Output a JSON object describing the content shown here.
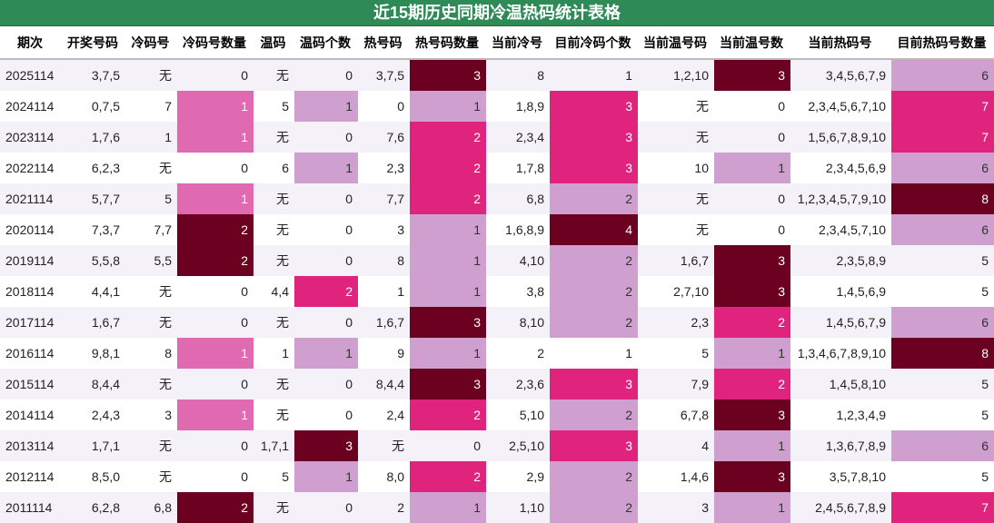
{
  "title": "近15期历史同期冷温热码统计表格",
  "colors": {
    "header_bg": "#2e8b57",
    "light": "#cf9fcf",
    "pink": "#e06ab2",
    "hot": "#e0247d",
    "dark": "#6b0020"
  },
  "columns": [
    "期次",
    "开奖号码",
    "冷码号",
    "冷码号数量",
    "温码",
    "温码个数",
    "热号码",
    "热号码数量",
    "当前冷号",
    "目前冷码个数",
    "当前温号码",
    "当前温号数",
    "当前热码号",
    "目前热码号数量"
  ],
  "rows": [
    [
      "2025114",
      "3,7,5",
      "无",
      "0",
      "无",
      "0",
      "3,7,5",
      "3",
      "8",
      "1",
      "1,2,10",
      "3",
      "3,4,5,6,7,9",
      "6"
    ],
    [
      "2024114",
      "0,7,5",
      "7",
      "1",
      "5",
      "1",
      "0",
      "1",
      "1,8,9",
      "3",
      "无",
      "0",
      "2,3,4,5,6,7,10",
      "7"
    ],
    [
      "2023114",
      "1,7,6",
      "1",
      "1",
      "无",
      "0",
      "7,6",
      "2",
      "2,3,4",
      "3",
      "无",
      "0",
      "1,5,6,7,8,9,10",
      "7"
    ],
    [
      "2022114",
      "6,2,3",
      "无",
      "0",
      "6",
      "1",
      "2,3",
      "2",
      "1,7,8",
      "3",
      "10",
      "1",
      "2,3,4,5,6,9",
      "6"
    ],
    [
      "2021114",
      "5,7,7",
      "5",
      "1",
      "无",
      "0",
      "7,7",
      "2",
      "6,8",
      "2",
      "无",
      "0",
      "1,2,3,4,5,7,9,10",
      "8"
    ],
    [
      "2020114",
      "7,3,7",
      "7,7",
      "2",
      "无",
      "0",
      "3",
      "1",
      "1,6,8,9",
      "4",
      "无",
      "0",
      "2,3,4,5,7,10",
      "6"
    ],
    [
      "2019114",
      "5,5,8",
      "5,5",
      "2",
      "无",
      "0",
      "8",
      "1",
      "4,10",
      "2",
      "1,6,7",
      "3",
      "2,3,5,8,9",
      "5"
    ],
    [
      "2018114",
      "4,4,1",
      "无",
      "0",
      "4,4",
      "2",
      "1",
      "1",
      "3,8",
      "2",
      "2,7,10",
      "3",
      "1,4,5,6,9",
      "5"
    ],
    [
      "2017114",
      "1,6,7",
      "无",
      "0",
      "无",
      "0",
      "1,6,7",
      "3",
      "8,10",
      "2",
      "2,3",
      "2",
      "1,4,5,6,7,9",
      "6"
    ],
    [
      "2016114",
      "9,8,1",
      "8",
      "1",
      "1",
      "1",
      "9",
      "1",
      "2",
      "1",
      "5",
      "1",
      "1,3,4,6,7,8,9,10",
      "8"
    ],
    [
      "2015114",
      "8,4,4",
      "无",
      "0",
      "无",
      "0",
      "8,4,4",
      "3",
      "2,3,6",
      "3",
      "7,9",
      "2",
      "1,4,5,8,10",
      "5"
    ],
    [
      "2014114",
      "2,4,3",
      "3",
      "1",
      "无",
      "0",
      "2,4",
      "2",
      "5,10",
      "2",
      "6,7,8",
      "3",
      "1,2,3,4,9",
      "5"
    ],
    [
      "2013114",
      "1,7,1",
      "无",
      "0",
      "1,7,1",
      "3",
      "无",
      "0",
      "2,5,10",
      "3",
      "4",
      "1",
      "1,3,6,7,8,9",
      "6"
    ],
    [
      "2012114",
      "8,5,0",
      "无",
      "0",
      "5",
      "1",
      "8,0",
      "2",
      "2,9",
      "2",
      "1,4,6",
      "3",
      "3,5,7,8,10",
      "5"
    ],
    [
      "2011114",
      "6,2,8",
      "6,8",
      "2",
      "无",
      "0",
      "2",
      "1",
      "1,10",
      "2",
      "3",
      "1",
      "2,4,5,6,7,8,9",
      "7"
    ]
  ]
}
